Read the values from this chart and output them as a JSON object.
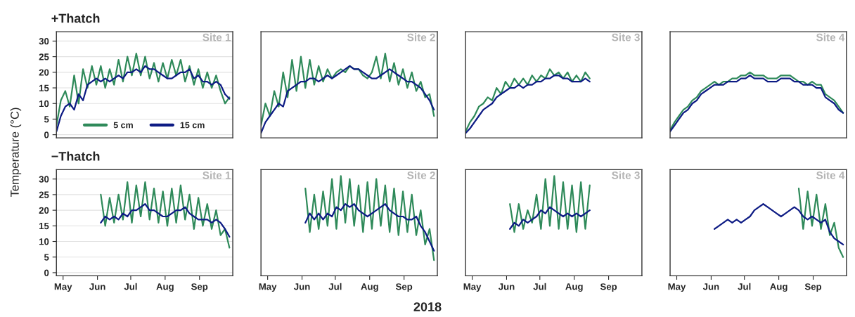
{
  "chart_data": [
    {
      "type": "line",
      "title": "+Thatch",
      "ylabel": "Temperature (°C)",
      "annotations": [
        "Site 1"
      ],
      "x": [
        "2018-04-25",
        "2018-04-29",
        "2018-05-03",
        "2018-05-07",
        "2018-05-11",
        "2018-05-15",
        "2018-05-19",
        "2018-05-23",
        "2018-05-27",
        "2018-05-31",
        "2018-06-04",
        "2018-06-08",
        "2018-06-12",
        "2018-06-16",
        "2018-06-20",
        "2018-06-24",
        "2018-06-28",
        "2018-07-02",
        "2018-07-06",
        "2018-07-10",
        "2018-07-14",
        "2018-07-18",
        "2018-07-22",
        "2018-07-26",
        "2018-07-30",
        "2018-08-03",
        "2018-08-07",
        "2018-08-11",
        "2018-08-15",
        "2018-08-19",
        "2018-08-23",
        "2018-08-27",
        "2018-08-31",
        "2018-09-04",
        "2018-09-08",
        "2018-09-12",
        "2018-09-16",
        "2018-09-20",
        "2018-09-24",
        "2018-09-28"
      ],
      "xlim": [
        "2018-04-25",
        "2018-10-01"
      ],
      "ylim": [
        -1,
        33
      ],
      "yticks": [
        0,
        5,
        10,
        15,
        20,
        25,
        30
      ],
      "grid": "y",
      "legend": "bottom",
      "tick_labels": "y",
      "series": [
        {
          "name": "5 cm",
          "color": "#2f8a5a",
          "values": [
            3,
            11,
            14,
            9,
            19,
            10,
            21,
            15,
            22,
            16,
            22,
            15,
            21,
            16,
            24,
            17,
            25,
            19,
            26,
            19,
            25,
            18,
            23,
            17,
            23,
            18,
            24,
            19,
            24,
            17,
            22,
            16,
            21,
            15,
            20,
            15,
            19,
            14,
            10,
            12
          ]
        },
        {
          "name": "15 cm",
          "color": "#0d1b84",
          "values": [
            1,
            6,
            9,
            10,
            8,
            13,
            11,
            16,
            17,
            18,
            17,
            18,
            17,
            18,
            19,
            18,
            20,
            20,
            21,
            20,
            22,
            21,
            21,
            20,
            19,
            18,
            18,
            19,
            20,
            20,
            21,
            18,
            19,
            17,
            17,
            16,
            17,
            16,
            13,
            11.5
          ]
        }
      ]
    },
    {
      "type": "line",
      "annotations": [
        "Site 2"
      ],
      "x": [
        "2018-04-25",
        "2018-04-29",
        "2018-05-03",
        "2018-05-07",
        "2018-05-11",
        "2018-05-15",
        "2018-05-19",
        "2018-05-23",
        "2018-05-27",
        "2018-05-31",
        "2018-06-04",
        "2018-06-08",
        "2018-06-12",
        "2018-06-16",
        "2018-06-20",
        "2018-06-24",
        "2018-06-28",
        "2018-07-02",
        "2018-07-06",
        "2018-07-10",
        "2018-07-14",
        "2018-07-18",
        "2018-07-22",
        "2018-07-26",
        "2018-07-30",
        "2018-08-03",
        "2018-08-07",
        "2018-08-11",
        "2018-08-15",
        "2018-08-19",
        "2018-08-23",
        "2018-08-27",
        "2018-08-31",
        "2018-09-04",
        "2018-09-08",
        "2018-09-12",
        "2018-09-16",
        "2018-09-20",
        "2018-09-24",
        "2018-09-28"
      ],
      "xlim": [
        "2018-04-25",
        "2018-10-01"
      ],
      "ylim": [
        -1,
        33
      ],
      "grid": "y",
      "tick_labels": false,
      "series": [
        {
          "color": "#2f8a5a",
          "values": [
            3,
            10,
            6,
            14,
            9,
            20,
            12,
            24,
            14,
            25,
            15,
            24,
            16,
            22,
            17,
            21,
            18,
            20,
            21,
            20,
            22,
            21,
            21,
            19,
            18,
            20,
            25,
            18,
            26,
            17,
            23,
            16,
            21,
            15,
            20,
            14,
            17,
            12,
            13,
            6
          ]
        },
        {
          "color": "#0d1b84",
          "values": [
            0.5,
            4,
            6,
            8,
            10,
            9,
            14,
            15,
            16,
            17,
            17,
            18,
            18,
            17,
            18,
            19,
            18,
            19,
            20,
            21,
            22,
            21,
            21,
            20,
            19,
            18,
            18,
            19,
            20,
            21,
            20,
            19,
            18,
            17,
            17,
            16,
            15,
            13,
            11,
            8
          ]
        }
      ]
    },
    {
      "type": "line",
      "annotations": [
        "Site 3"
      ],
      "x": [
        "2018-04-25",
        "2018-04-29",
        "2018-05-03",
        "2018-05-07",
        "2018-05-11",
        "2018-05-15",
        "2018-05-19",
        "2018-05-23",
        "2018-05-27",
        "2018-05-31",
        "2018-06-04",
        "2018-06-08",
        "2018-06-12",
        "2018-06-16",
        "2018-06-20",
        "2018-06-24",
        "2018-06-28",
        "2018-07-02",
        "2018-07-06",
        "2018-07-10",
        "2018-07-14",
        "2018-07-18",
        "2018-07-22",
        "2018-07-26",
        "2018-07-30",
        "2018-08-03",
        "2018-08-07",
        "2018-08-11",
        "2018-08-15"
      ],
      "xlim": [
        "2018-04-25",
        "2018-10-01"
      ],
      "ylim": [
        -1,
        33
      ],
      "grid": "y",
      "tick_labels": false,
      "series": [
        {
          "color": "#2f8a5a",
          "values": [
            1,
            4,
            6,
            9,
            10,
            12,
            11,
            15,
            13,
            17,
            15,
            18,
            16,
            18,
            16,
            19,
            17,
            19,
            18,
            21,
            19,
            20,
            18,
            20,
            17,
            19,
            17,
            20,
            18
          ]
        },
        {
          "color": "#0d1b84",
          "values": [
            0.5,
            2,
            4,
            6,
            8,
            9,
            10,
            12,
            13,
            14,
            15,
            15,
            16,
            15,
            16,
            16,
            17,
            17,
            18,
            18,
            19,
            19,
            18,
            18,
            17,
            17,
            17,
            18,
            17
          ]
        }
      ]
    },
    {
      "type": "line",
      "annotations": [
        "Site 4"
      ],
      "x": [
        "2018-04-25",
        "2018-04-29",
        "2018-05-03",
        "2018-05-07",
        "2018-05-11",
        "2018-05-15",
        "2018-05-19",
        "2018-05-23",
        "2018-05-27",
        "2018-05-31",
        "2018-06-04",
        "2018-06-08",
        "2018-06-12",
        "2018-06-16",
        "2018-06-20",
        "2018-06-24",
        "2018-06-28",
        "2018-07-02",
        "2018-07-06",
        "2018-07-10",
        "2018-07-14",
        "2018-07-18",
        "2018-07-22",
        "2018-07-26",
        "2018-07-30",
        "2018-08-03",
        "2018-08-07",
        "2018-08-11",
        "2018-08-15",
        "2018-08-19",
        "2018-08-23",
        "2018-08-27",
        "2018-08-31",
        "2018-09-04",
        "2018-09-08",
        "2018-09-12",
        "2018-09-16",
        "2018-09-20",
        "2018-09-24",
        "2018-09-28"
      ],
      "xlim": [
        "2018-04-25",
        "2018-10-01"
      ],
      "ylim": [
        -1,
        33
      ],
      "grid": "y",
      "tick_labels": false,
      "series": [
        {
          "color": "#2f8a5a",
          "values": [
            1.5,
            4,
            6,
            8,
            9,
            11,
            12,
            14,
            15,
            16,
            17,
            16,
            17,
            17,
            18,
            18,
            19,
            19,
            20,
            19,
            19,
            19,
            18,
            18,
            18,
            19,
            19,
            19,
            18,
            17,
            17,
            16,
            17,
            16,
            16,
            13,
            12,
            11,
            9,
            7
          ]
        },
        {
          "color": "#0d1b84",
          "values": [
            1,
            3,
            5,
            7,
            8,
            10,
            11,
            13,
            14,
            15,
            16,
            16,
            16,
            17,
            17,
            17,
            18,
            18,
            19,
            18,
            18,
            18,
            17,
            17,
            17,
            18,
            18,
            18,
            17,
            17,
            16,
            16,
            16,
            15,
            15,
            12,
            11,
            10,
            8,
            7
          ]
        }
      ]
    },
    {
      "type": "line",
      "title": "−Thatch",
      "annotations": [
        "Site 1"
      ],
      "x": [
        "2018-06-04",
        "2018-06-08",
        "2018-06-12",
        "2018-06-16",
        "2018-06-20",
        "2018-06-24",
        "2018-06-28",
        "2018-07-02",
        "2018-07-06",
        "2018-07-10",
        "2018-07-14",
        "2018-07-18",
        "2018-07-22",
        "2018-07-26",
        "2018-07-30",
        "2018-08-03",
        "2018-08-07",
        "2018-08-11",
        "2018-08-15",
        "2018-08-19",
        "2018-08-23",
        "2018-08-27",
        "2018-08-31",
        "2018-09-04",
        "2018-09-08",
        "2018-09-12",
        "2018-09-16",
        "2018-09-20",
        "2018-09-24",
        "2018-09-28"
      ],
      "xlim": [
        "2018-04-25",
        "2018-10-01"
      ],
      "xticks": [
        {
          "value": "2018-05-01",
          "label": "May"
        },
        {
          "value": "2018-06-01",
          "label": "Jun"
        },
        {
          "value": "2018-07-01",
          "label": "Jul"
        },
        {
          "value": "2018-08-01",
          "label": "Aug"
        },
        {
          "value": "2018-09-01",
          "label": "Sep"
        }
      ],
      "ylim": [
        -1,
        33
      ],
      "yticks": [
        0,
        5,
        10,
        15,
        20,
        25,
        30
      ],
      "grid": "y",
      "series": [
        {
          "color": "#2f8a5a",
          "values": [
            25,
            15,
            24,
            16,
            25,
            17,
            29,
            16,
            28,
            18,
            29,
            17,
            27,
            16,
            26,
            15,
            27,
            16,
            28,
            17,
            25,
            14,
            24,
            15,
            22,
            14,
            20,
            12,
            14,
            8
          ]
        },
        {
          "color": "#0d1b84",
          "values": [
            16,
            18,
            17,
            18,
            17,
            19,
            18,
            20,
            20,
            21,
            22,
            20,
            20,
            19,
            18,
            18,
            19,
            20,
            20,
            21,
            19,
            18,
            17,
            17,
            17,
            16,
            17,
            16,
            14,
            11.5
          ]
        }
      ]
    },
    {
      "type": "line",
      "xlabel": "2018",
      "annotations": [
        "Site 2"
      ],
      "x": [
        "2018-06-04",
        "2018-06-08",
        "2018-06-12",
        "2018-06-16",
        "2018-06-20",
        "2018-06-24",
        "2018-06-28",
        "2018-07-02",
        "2018-07-06",
        "2018-07-10",
        "2018-07-14",
        "2018-07-18",
        "2018-07-22",
        "2018-07-26",
        "2018-07-30",
        "2018-08-03",
        "2018-08-07",
        "2018-08-11",
        "2018-08-15",
        "2018-08-19",
        "2018-08-23",
        "2018-08-27",
        "2018-08-31",
        "2018-09-04",
        "2018-09-08",
        "2018-09-12",
        "2018-09-16",
        "2018-09-20",
        "2018-09-24",
        "2018-09-28"
      ],
      "xlim": [
        "2018-04-25",
        "2018-10-01"
      ],
      "xticks": [
        {
          "value": "2018-05-01",
          "label": "May"
        },
        {
          "value": "2018-06-01",
          "label": "Jun"
        },
        {
          "value": "2018-07-01",
          "label": "Jul"
        },
        {
          "value": "2018-08-01",
          "label": "Aug"
        },
        {
          "value": "2018-09-01",
          "label": "Sep"
        }
      ],
      "ylim": [
        -1,
        33
      ],
      "grid": "y",
      "tick_labels": "x",
      "series": [
        {
          "color": "#2f8a5a",
          "values": [
            27,
            13,
            25,
            14,
            26,
            15,
            30,
            14,
            31,
            16,
            30,
            15,
            28,
            13,
            29,
            14,
            30,
            15,
            28,
            13,
            27,
            12,
            26,
            13,
            25,
            12,
            20,
            9,
            14,
            4
          ]
        },
        {
          "color": "#0d1b84",
          "values": [
            16,
            19,
            17,
            19,
            17,
            19,
            18,
            21,
            20,
            22,
            21,
            22,
            20,
            19,
            18,
            19,
            20,
            21,
            22,
            20,
            19,
            18,
            18,
            17,
            17,
            18,
            15,
            13,
            10,
            7
          ]
        }
      ]
    },
    {
      "type": "line",
      "annotations": [
        "Site 3"
      ],
      "x": [
        "2018-06-04",
        "2018-06-08",
        "2018-06-12",
        "2018-06-16",
        "2018-06-20",
        "2018-06-24",
        "2018-06-28",
        "2018-07-02",
        "2018-07-06",
        "2018-07-10",
        "2018-07-14",
        "2018-07-18",
        "2018-07-22",
        "2018-07-26",
        "2018-07-30",
        "2018-08-03",
        "2018-08-07",
        "2018-08-11",
        "2018-08-15"
      ],
      "xlim": [
        "2018-04-25",
        "2018-10-01"
      ],
      "xticks": [
        {
          "value": "2018-05-01",
          "label": "May"
        },
        {
          "value": "2018-06-01",
          "label": "Jun"
        },
        {
          "value": "2018-07-01",
          "label": "Jul"
        },
        {
          "value": "2018-08-01",
          "label": "Aug"
        },
        {
          "value": "2018-09-01",
          "label": "Sep"
        }
      ],
      "ylim": [
        -1,
        33
      ],
      "grid": "y",
      "tick_labels": "x",
      "series": [
        {
          "color": "#2f8a5a",
          "values": [
            22,
            13,
            22,
            14,
            20,
            16,
            25,
            14,
            30,
            15,
            31,
            14,
            29,
            14,
            28,
            13,
            29,
            14,
            28
          ]
        },
        {
          "color": "#0d1b84",
          "values": [
            14,
            16,
            15,
            17,
            16,
            17,
            18,
            20,
            19,
            21,
            20,
            19,
            18,
            19,
            18,
            19,
            18,
            19,
            20
          ]
        }
      ]
    },
    {
      "type": "line",
      "annotations": [
        "Site 4"
      ],
      "xlim": [
        "2018-04-25",
        "2018-10-01"
      ],
      "xticks": [
        {
          "value": "2018-05-01",
          "label": "May"
        },
        {
          "value": "2018-06-01",
          "label": "Jun"
        },
        {
          "value": "2018-07-01",
          "label": "Jul"
        },
        {
          "value": "2018-08-01",
          "label": "Aug"
        },
        {
          "value": "2018-09-01",
          "label": "Sep"
        }
      ],
      "ylim": [
        -1,
        33
      ],
      "grid": "y",
      "tick_labels": "x",
      "series": [
        {
          "color": "#2f8a5a",
          "x": [
            "2018-08-19",
            "2018-08-23",
            "2018-08-27",
            "2018-08-31",
            "2018-09-04",
            "2018-09-08",
            "2018-09-12",
            "2018-09-16",
            "2018-09-20",
            "2018-09-24",
            "2018-09-28"
          ],
          "values": [
            27,
            14,
            26,
            15,
            25,
            14,
            22,
            12,
            16,
            8,
            5
          ]
        },
        {
          "color": "#0d1b84",
          "x": [
            "2018-06-04",
            "2018-06-08",
            "2018-06-12",
            "2018-06-16",
            "2018-06-20",
            "2018-06-24",
            "2018-06-28",
            "2018-07-02",
            "2018-07-06",
            "2018-07-10",
            "2018-07-14",
            "2018-07-18",
            "2018-07-22",
            "2018-07-26",
            "2018-07-30",
            "2018-08-03",
            "2018-08-07",
            "2018-08-11",
            "2018-08-15",
            "2018-08-19",
            "2018-08-23",
            "2018-08-27",
            "2018-08-31",
            "2018-09-04",
            "2018-09-08",
            "2018-09-12",
            "2018-09-16",
            "2018-09-20",
            "2018-09-24",
            "2018-09-28"
          ],
          "values": [
            14,
            15,
            16,
            17,
            16,
            17,
            16,
            17,
            18,
            20,
            21,
            22,
            21,
            20,
            19,
            18,
            19,
            20,
            21,
            20,
            18,
            17,
            18,
            17,
            16,
            17,
            13,
            11,
            10,
            9
          ]
        }
      ]
    }
  ]
}
